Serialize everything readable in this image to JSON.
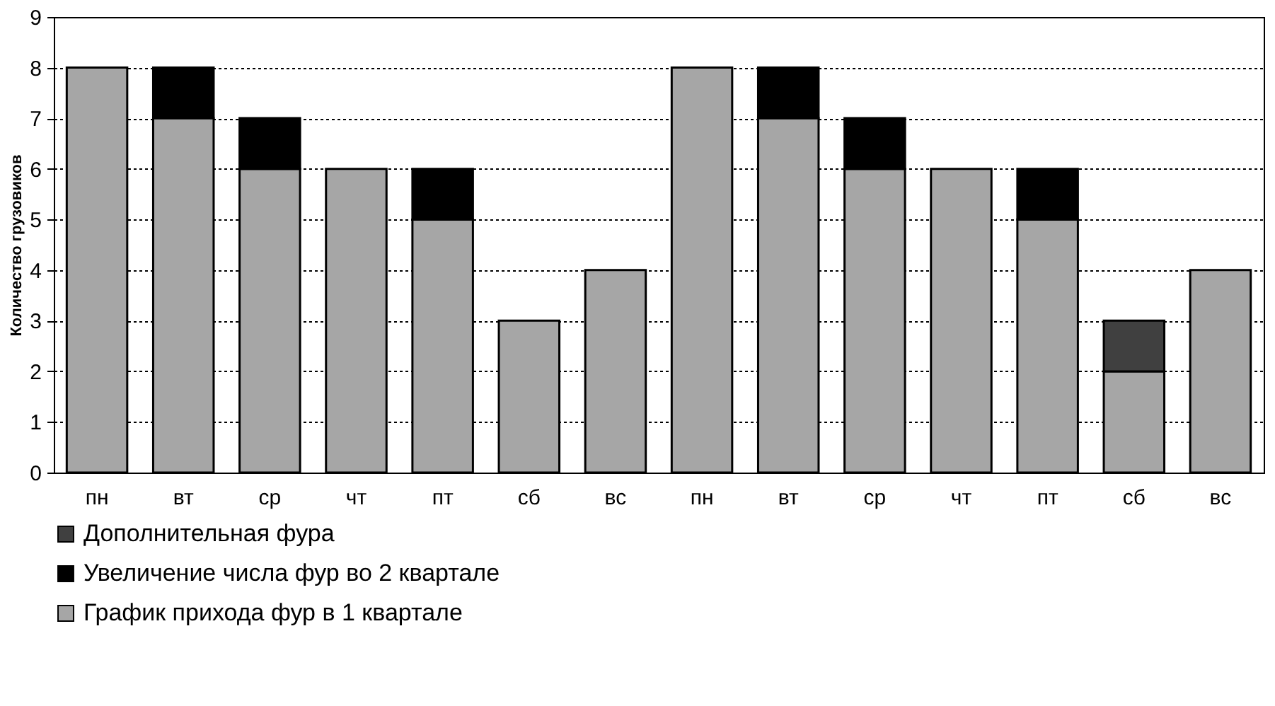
{
  "chart_data": {
    "type": "bar",
    "stacked": true,
    "ylabel": "Количество грузовиков",
    "categories": [
      "пн",
      "вт",
      "ср",
      "чт",
      "пт",
      "сб",
      "вс",
      "пн",
      "вт",
      "ср",
      "чт",
      "пт",
      "сб",
      "вс"
    ],
    "series": [
      {
        "name": "График прихода фур в 1 квартале",
        "color": "#a6a6a6",
        "values": [
          8,
          7,
          6,
          6,
          5,
          3,
          4,
          8,
          7,
          6,
          6,
          5,
          2,
          4
        ]
      },
      {
        "name": "Увеличение числа фур во 2 квартале",
        "color": "#000000",
        "values": [
          null,
          1,
          1,
          null,
          1,
          null,
          null,
          null,
          1,
          1,
          null,
          1,
          null,
          null
        ]
      },
      {
        "name": "Дополнительная фура",
        "color": "#404040",
        "values": [
          null,
          null,
          null,
          null,
          null,
          null,
          null,
          null,
          null,
          null,
          null,
          null,
          1,
          null
        ]
      }
    ],
    "ylim": [
      0,
      9
    ],
    "yticks": [
      0,
      1,
      2,
      3,
      4,
      5,
      6,
      7,
      8,
      9
    ],
    "grid": "y",
    "legend": "bottom"
  }
}
